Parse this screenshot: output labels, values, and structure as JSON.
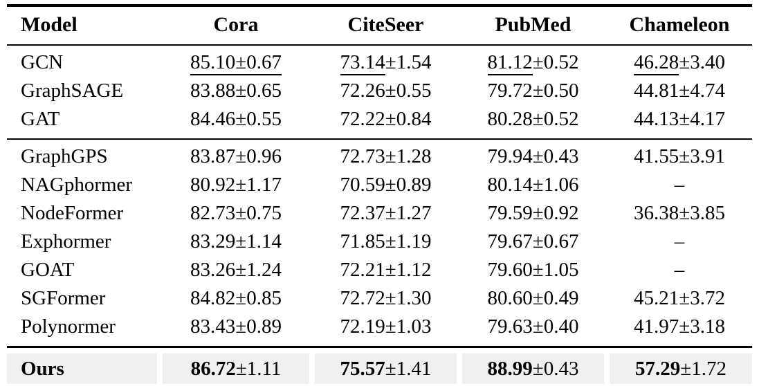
{
  "table": {
    "columns": [
      "Model",
      "Cora",
      "CiteSeer",
      "PubMed",
      "Chameleon"
    ],
    "missing_marker": "–",
    "plus_minus": "±",
    "sections": [
      {
        "name": "classic-gnns",
        "rows": [
          {
            "model": "GCN",
            "cells": [
              {
                "mean": "85.10",
                "pm": "±0.67",
                "underline": "full"
              },
              {
                "mean": "73.14",
                "pm": "±1.54",
                "underline": "mean"
              },
              {
                "mean": "81.12",
                "pm": "±0.52",
                "underline": "mean"
              },
              {
                "mean": "46.28",
                "pm": "±3.40",
                "underline": "mean"
              }
            ]
          },
          {
            "model": "GraphSAGE",
            "cells": [
              {
                "mean": "83.88",
                "pm": "±0.65"
              },
              {
                "mean": "72.26",
                "pm": "±0.55"
              },
              {
                "mean": "79.72",
                "pm": "±0.50"
              },
              {
                "mean": "44.81",
                "pm": "±4.74"
              }
            ]
          },
          {
            "model": "GAT",
            "cells": [
              {
                "mean": "84.46",
                "pm": "±0.55"
              },
              {
                "mean": "72.22",
                "pm": "±0.84"
              },
              {
                "mean": "80.28",
                "pm": "±0.52"
              },
              {
                "mean": "44.13",
                "pm": "±4.17"
              }
            ]
          }
        ]
      },
      {
        "name": "graph-transformers",
        "rows": [
          {
            "model": "GraphGPS",
            "cells": [
              {
                "mean": "83.87",
                "pm": "±0.96"
              },
              {
                "mean": "72.73",
                "pm": "±1.28"
              },
              {
                "mean": "79.94",
                "pm": "±0.43"
              },
              {
                "mean": "41.55",
                "pm": "±3.91"
              }
            ]
          },
          {
            "model": "NAGphormer",
            "cells": [
              {
                "mean": "80.92",
                "pm": "±1.17"
              },
              {
                "mean": "70.59",
                "pm": "±0.89"
              },
              {
                "mean": "80.14",
                "pm": "±1.06"
              },
              {
                "dash": true
              }
            ]
          },
          {
            "model": "NodeFormer",
            "cells": [
              {
                "mean": "82.73",
                "pm": "±0.75"
              },
              {
                "mean": "72.37",
                "pm": "±1.27"
              },
              {
                "mean": "79.59",
                "pm": "±0.92"
              },
              {
                "mean": "36.38",
                "pm": "±3.85"
              }
            ]
          },
          {
            "model": "Exphormer",
            "cells": [
              {
                "mean": "83.29",
                "pm": "±1.14"
              },
              {
                "mean": "71.85",
                "pm": "±1.19"
              },
              {
                "mean": "79.67",
                "pm": "±0.67"
              },
              {
                "dash": true
              }
            ]
          },
          {
            "model": "GOAT",
            "cells": [
              {
                "mean": "83.26",
                "pm": "±1.24"
              },
              {
                "mean": "72.21",
                "pm": "±1.12"
              },
              {
                "mean": "79.60",
                "pm": "±1.05"
              },
              {
                "dash": true
              }
            ]
          },
          {
            "model": "SGFormer",
            "cells": [
              {
                "mean": "84.82",
                "pm": "±0.85"
              },
              {
                "mean": "72.72",
                "pm": "±1.30"
              },
              {
                "mean": "80.60",
                "pm": "±0.49"
              },
              {
                "mean": "45.21",
                "pm": "±3.72"
              }
            ]
          },
          {
            "model": "Polynormer",
            "cells": [
              {
                "mean": "83.43",
                "pm": "±0.89"
              },
              {
                "mean": "72.19",
                "pm": "±1.03"
              },
              {
                "mean": "79.63",
                "pm": "±0.40"
              },
              {
                "mean": "41.97",
                "pm": "±3.18"
              }
            ]
          }
        ]
      },
      {
        "name": "ours",
        "highlight": true,
        "rows": [
          {
            "model": "Ours",
            "bold_model": true,
            "cells": [
              {
                "mean": "86.72",
                "pm": "±1.11",
                "bold_mean": true
              },
              {
                "mean": "75.57",
                "pm": "±1.41",
                "bold_mean": true
              },
              {
                "mean": "88.99",
                "pm": "±0.43",
                "bold_mean": true
              },
              {
                "mean": "57.29",
                "pm": "±1.72",
                "bold_mean": true
              }
            ]
          }
        ]
      }
    ]
  },
  "colors": {
    "highlight_row_bg": "#f0f0f0",
    "rule": "#000000",
    "text": "#000000"
  }
}
